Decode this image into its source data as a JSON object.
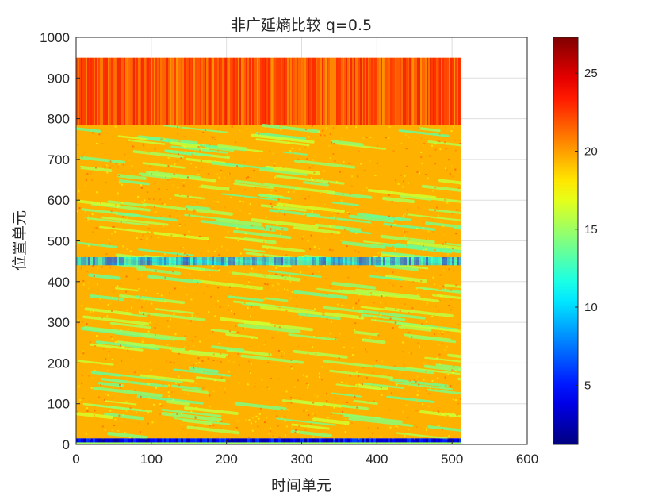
{
  "chart_data": {
    "type": "heatmap",
    "title": "非广延熵比较 q=0.5",
    "xlabel": "时间单元",
    "ylabel": "位置单元",
    "xlim": [
      0,
      600
    ],
    "ylim": [
      0,
      1000
    ],
    "x_ticks": [
      0,
      100,
      200,
      300,
      400,
      500,
      600
    ],
    "y_ticks": [
      0,
      100,
      200,
      300,
      400,
      500,
      600,
      700,
      800,
      900,
      1000
    ],
    "data_extent": {
      "x": [
        0,
        512
      ],
      "y": [
        0,
        950
      ]
    },
    "colormap": "jet",
    "color_range": [
      1.2,
      27.3
    ],
    "colorbar_ticks": [
      5,
      10,
      15,
      20,
      25
    ],
    "grid": true,
    "features": [
      {
        "y_range": [
          785,
          950
        ],
        "value": 21.5
      },
      {
        "y_range": [
          440,
          460
        ],
        "value": 9
      },
      {
        "y_range": [
          5,
          15
        ],
        "value": 4
      },
      {
        "y_range": [
          15,
          785
        ],
        "value": 19.5,
        "streaks_value": 15
      }
    ]
  }
}
